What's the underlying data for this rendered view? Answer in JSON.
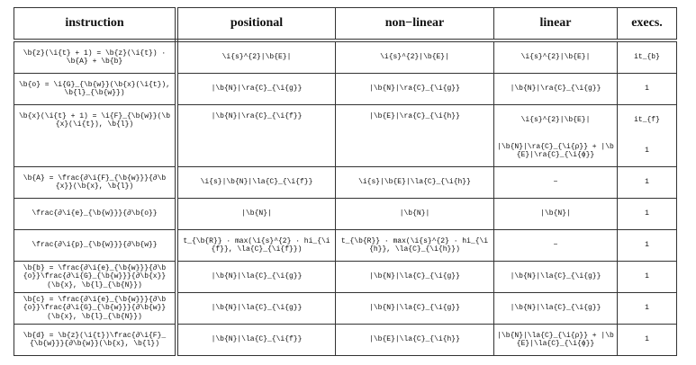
{
  "table": {
    "headers": [
      "instruction",
      "positional",
      "non−linear",
      "linear",
      "execs."
    ],
    "rows": [
      {
        "instruction": "\\b{z}(\\i{t} + 1) = \\b{z}(\\i{t}) · \\b{A} + \\b{b}",
        "positional": "\\i{s}^{2}|\\b{E}|",
        "non_linear": "\\i{s}^{2}|\\b{E}|",
        "linear": "\\i{s}^{2}|\\b{E}|",
        "execs": "it_{b}"
      },
      {
        "instruction": "\\b{o} = \\i{G}_{\\b{w}}(\\b{x}(\\i{t}), \\b{l}_{\\b{w}})",
        "positional": "|\\b{N}|\\ra{C}_{\\i{g}}",
        "non_linear": "|\\b{N}|\\ra{C}_{\\i{g}}",
        "linear": "|\\b{N}|\\ra{C}_{\\i{g}}",
        "execs": "1"
      },
      {
        "instruction": "\\b{x}(\\i{t} + 1) = \\i{F}_{\\b{w}}(\\b{x}(\\i{t}), \\b{l})",
        "positional": "|\\b{N}|\\ra{C}_{\\i{f}}",
        "non_linear": "|\\b{E}|\\ra{C}_{\\i{h}}",
        "linear": "\\i{s}^{2}|\\b{E}|",
        "execs": "it_{f}",
        "linear_extra": "|\\b{N}|\\ra{C}_{\\i{ρ}} + |\\b{E}|\\ra{C}_{\\i{ϕ}}",
        "execs_extra": "1"
      },
      {
        "instruction": "\\b{A} = \\frac{∂\\i{F}_{\\b{w}}}{∂\\b{x}}(\\b{x}, \\b{l})",
        "positional": "\\i{s}|\\b{N}|\\la{C}_{\\i{f}}",
        "non_linear": "\\i{s}|\\b{E}|\\la{C}_{\\i{h}}",
        "linear": "−",
        "execs": "1"
      },
      {
        "instruction": "\\frac{∂\\i{e}_{\\b{w}}}{∂\\b{o}}",
        "positional": "|\\b{N}|",
        "non_linear": "|\\b{N}|",
        "linear": "|\\b{N}|",
        "execs": "1"
      },
      {
        "instruction": "\\frac{∂\\i{p}_{\\b{w}}}{∂\\b{w}}",
        "positional": "t_{\\b{R}} · max(\\i{s}^{2} · hi_{\\i{f}}, \\la{C}_{\\i{f}})",
        "non_linear": "t_{\\b{R}} · max(\\i{s}^{2} · hi_{\\i{h}}, \\la{C}_{\\i{h}})",
        "linear": "−",
        "execs": "1"
      },
      {
        "instruction": "\\b{b} = \\frac{∂\\i{e}_{\\b{w}}}{∂\\b{o}}\\frac{∂\\i{G}_{\\b{w}}}{∂\\b{x}}(\\b{x}, \\b{l}_{\\b{N}})",
        "positional": "|\\b{N}|\\la{C}_{\\i{g}}",
        "non_linear": "|\\b{N}|\\la{C}_{\\i{g}}",
        "linear": "|\\b{N}|\\la{C}_{\\i{g}}",
        "execs": "1"
      },
      {
        "instruction": "\\b{c} = \\frac{∂\\i{e}_{\\b{w}}}{∂\\b{o}}\\frac{∂\\i{G}_{\\b{w}}}{∂\\b{w}}(\\b{x}, \\b{l}_{\\b{N}})",
        "positional": "|\\b{N}|\\la{C}_{\\i{g}}",
        "non_linear": "|\\b{N}|\\la{C}_{\\i{g}}",
        "linear": "|\\b{N}|\\la{C}_{\\i{g}}",
        "execs": "1"
      },
      {
        "instruction": "\\b{d} = \\b{z}(\\i{t})\\frac{∂\\i{F}_{\\b{w}}}{∂\\b{w}}(\\b{x}, \\b{l})",
        "positional": "|\\b{N}|\\la{C}_{\\i{f}}",
        "non_linear": "|\\b{E}|\\la{C}_{\\i{h}}",
        "linear": "|\\b{N}|\\la{C}_{\\i{ρ}} + |\\b{E}|\\la{C}_{\\i{ϕ}}",
        "execs": "1"
      }
    ]
  }
}
